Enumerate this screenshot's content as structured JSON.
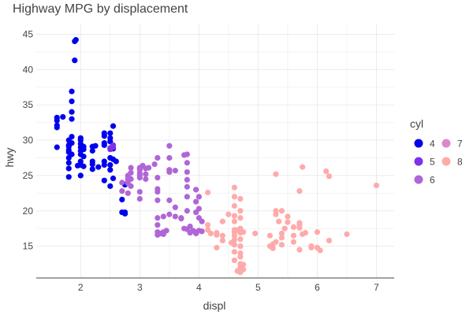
{
  "chart_data": {
    "type": "scatter",
    "title": "Highway MPG by displacement",
    "xlabel": "displ",
    "ylabel": "hwy",
    "xlim": [
      1.25,
      7.3
    ],
    "ylim": [
      10.5,
      46.5
    ],
    "xticks": [
      2,
      3,
      4,
      5,
      6,
      7
    ],
    "yticks": [
      15,
      20,
      25,
      30,
      35,
      40,
      45
    ],
    "grid": true,
    "legend": {
      "title": "cyl",
      "placement": "right",
      "entries": [
        {
          "label": "4",
          "color": "#0000ee"
        },
        {
          "label": "5",
          "color": "#7d32e8"
        },
        {
          "label": "6",
          "color": "#b066d6"
        },
        {
          "label": "7",
          "color": "#dd88cc"
        },
        {
          "label": "8",
          "color": "#ffaaaa"
        }
      ]
    },
    "series": [
      {
        "name": "4",
        "color": "#0000ee",
        "points": [
          [
            1.6,
            33.2
          ],
          [
            1.6,
            32.1
          ],
          [
            1.6,
            31.8
          ],
          [
            1.6,
            29.0
          ],
          [
            1.6,
            32.8
          ],
          [
            1.7,
            33.3
          ],
          [
            1.8,
            29.1
          ],
          [
            1.8,
            28.6
          ],
          [
            1.8,
            26.0
          ],
          [
            1.8,
            24.8
          ],
          [
            1.8,
            26.8
          ],
          [
            1.8,
            28.3
          ],
          [
            1.8,
            30.0
          ],
          [
            1.8,
            29.3
          ],
          [
            1.8,
            27.5
          ],
          [
            1.85,
            30.5
          ],
          [
            1.85,
            34.0
          ],
          [
            1.85,
            33.0
          ],
          [
            1.85,
            35.5
          ],
          [
            1.85,
            36.9
          ],
          [
            1.85,
            28.0
          ],
          [
            1.85,
            29.6
          ],
          [
            1.9,
            44.0
          ],
          [
            1.9,
            41.3
          ],
          [
            1.92,
            44.2
          ],
          [
            1.95,
            26.4
          ],
          [
            2.0,
            29.0
          ],
          [
            2.0,
            30.0
          ],
          [
            2.0,
            28.0
          ],
          [
            2.0,
            26.5
          ],
          [
            2.0,
            25.0
          ],
          [
            2.0,
            29.5
          ],
          [
            2.0,
            28.5
          ],
          [
            2.0,
            27.0
          ],
          [
            2.0,
            30.3
          ],
          [
            2.05,
            28.7
          ],
          [
            2.05,
            29.1
          ],
          [
            2.05,
            27.7
          ],
          [
            2.05,
            26.3
          ],
          [
            2.2,
            27.0
          ],
          [
            2.2,
            25.9
          ],
          [
            2.2,
            26.6
          ],
          [
            2.2,
            28.5
          ],
          [
            2.2,
            29.1
          ],
          [
            2.25,
            29.2
          ],
          [
            2.3,
            26.2
          ],
          [
            2.4,
            30.6
          ],
          [
            2.4,
            31.0
          ],
          [
            2.4,
            29.6
          ],
          [
            2.4,
            27.0
          ],
          [
            2.4,
            26.5
          ],
          [
            2.4,
            24.3
          ],
          [
            2.4,
            29.3
          ],
          [
            2.5,
            30.3
          ],
          [
            2.5,
            29.8
          ],
          [
            2.5,
            31.0
          ],
          [
            2.5,
            27.5
          ],
          [
            2.5,
            26.5
          ],
          [
            2.5,
            25.8
          ],
          [
            2.5,
            23.5
          ],
          [
            2.55,
            32.0
          ],
          [
            2.55,
            28.8
          ],
          [
            2.55,
            27.3
          ],
          [
            2.55,
            24.6
          ],
          [
            2.6,
            27.0
          ],
          [
            2.7,
            21.6
          ],
          [
            2.7,
            19.8
          ],
          [
            2.75,
            19.8
          ],
          [
            2.75,
            19.6
          ],
          [
            2.75,
            23.7
          ]
        ]
      },
      {
        "name": "5",
        "color": "#7d32e8",
        "points": [
          [
            2.5,
            28.9
          ],
          [
            2.55,
            29.3
          ],
          [
            2.5,
            28.7
          ],
          [
            2.55,
            29.0
          ]
        ]
      },
      {
        "name": "6",
        "color": "#b066d6",
        "points": [
          [
            2.7,
            24.0
          ],
          [
            2.7,
            22.8
          ],
          [
            2.8,
            25.0
          ],
          [
            2.8,
            24.6
          ],
          [
            2.8,
            23.9
          ],
          [
            2.8,
            22.5
          ],
          [
            2.8,
            24.2
          ],
          [
            2.8,
            24.9
          ],
          [
            2.85,
            25.4
          ],
          [
            2.85,
            26.1
          ],
          [
            2.85,
            23.5
          ],
          [
            2.85,
            24.5
          ],
          [
            3.0,
            26.0
          ],
          [
            3.0,
            25.0
          ],
          [
            3.0,
            22.7
          ],
          [
            3.0,
            26.1
          ],
          [
            3.0,
            25.3
          ],
          [
            3.0,
            24.7
          ],
          [
            3.0,
            21.7
          ],
          [
            3.0,
            25.8
          ],
          [
            3.05,
            26.4
          ],
          [
            3.1,
            26.0
          ],
          [
            3.1,
            25.2
          ],
          [
            3.1,
            24.5
          ],
          [
            3.15,
            26.1
          ],
          [
            3.25,
            26.6
          ],
          [
            3.3,
            27.5
          ],
          [
            3.3,
            24.7
          ],
          [
            3.3,
            23.1
          ],
          [
            3.3,
            22.7
          ],
          [
            3.3,
            17.0
          ],
          [
            3.3,
            18.0
          ],
          [
            3.3,
            16.6
          ],
          [
            3.3,
            19.0
          ],
          [
            3.3,
            21.5
          ],
          [
            3.35,
            16.8
          ],
          [
            3.4,
            17.0
          ],
          [
            3.4,
            16.7
          ],
          [
            3.4,
            19.2
          ],
          [
            3.45,
            17.2
          ],
          [
            3.5,
            29.2
          ],
          [
            3.5,
            27.5
          ],
          [
            3.5,
            25.5
          ],
          [
            3.5,
            25.8
          ],
          [
            3.6,
            25.7
          ],
          [
            3.5,
            21.5
          ],
          [
            3.5,
            19.5
          ],
          [
            3.6,
            19.2
          ],
          [
            3.6,
            20.5
          ],
          [
            3.75,
            27.9
          ],
          [
            3.7,
            19.0
          ],
          [
            3.7,
            18.9
          ],
          [
            3.75,
            17.5
          ],
          [
            3.8,
            28.0
          ],
          [
            3.8,
            26.8
          ],
          [
            3.8,
            25.5
          ],
          [
            3.8,
            24.4
          ],
          [
            3.8,
            23.4
          ],
          [
            3.8,
            22.0
          ],
          [
            3.8,
            20.0
          ],
          [
            3.8,
            17.4
          ],
          [
            3.85,
            16.9
          ],
          [
            3.85,
            17.8
          ],
          [
            3.9,
            17.2
          ],
          [
            3.95,
            17.0
          ],
          [
            3.95,
            16.8
          ],
          [
            3.95,
            19.8
          ],
          [
            3.95,
            21.3
          ],
          [
            3.95,
            23.0
          ],
          [
            4.0,
            19.0
          ],
          [
            4.0,
            17.2
          ],
          [
            4.0,
            20.3
          ],
          [
            4.0,
            22.0
          ],
          [
            4.05,
            18.5
          ],
          [
            4.05,
            17.1
          ]
        ]
      },
      {
        "name": "8",
        "color": "#ffaaaa",
        "points": [
          [
            4.15,
            22.6
          ],
          [
            4.15,
            18.0
          ],
          [
            4.15,
            17.3
          ],
          [
            4.2,
            16.8
          ],
          [
            4.6,
            23.3
          ],
          [
            4.6,
            22.0
          ],
          [
            4.6,
            20.7
          ],
          [
            4.6,
            19.3
          ],
          [
            4.6,
            18.5
          ],
          [
            4.6,
            17.3
          ],
          [
            4.6,
            17.0
          ],
          [
            4.6,
            16.5
          ],
          [
            4.6,
            15.9
          ],
          [
            4.6,
            15.2
          ],
          [
            4.6,
            14.2
          ],
          [
            4.7,
            21.7
          ],
          [
            4.7,
            20.0
          ],
          [
            4.7,
            19.0
          ],
          [
            4.7,
            17.5
          ],
          [
            4.7,
            16.9
          ],
          [
            4.7,
            17.2
          ],
          [
            4.7,
            16.0
          ],
          [
            4.7,
            15.0
          ],
          [
            4.7,
            14.0
          ],
          [
            4.7,
            12.5
          ],
          [
            4.7,
            12.0
          ],
          [
            4.65,
            11.5
          ],
          [
            4.75,
            12.4
          ],
          [
            4.75,
            11.7
          ],
          [
            4.7,
            11.3
          ],
          [
            4.65,
            17.3
          ],
          [
            4.55,
            15.5
          ],
          [
            4.5,
            19.5
          ],
          [
            4.4,
            15.8
          ],
          [
            4.4,
            18.5
          ],
          [
            4.4,
            16.5
          ],
          [
            4.3,
            16.9
          ],
          [
            4.3,
            16.6
          ],
          [
            4.3,
            14.8
          ],
          [
            4.7,
            13.5
          ],
          [
            4.6,
            13.0
          ],
          [
            4.75,
            17.0
          ],
          [
            4.95,
            16.8
          ],
          [
            5.2,
            15.0
          ],
          [
            5.2,
            16.5
          ],
          [
            5.25,
            15.3
          ],
          [
            5.25,
            14.7
          ],
          [
            5.3,
            25.2
          ],
          [
            5.3,
            20.0
          ],
          [
            5.3,
            19.5
          ],
          [
            5.35,
            18.5
          ],
          [
            5.4,
            20.0
          ],
          [
            5.4,
            16.8
          ],
          [
            5.4,
            16.2
          ],
          [
            5.4,
            15.2
          ],
          [
            5.3,
            15.6
          ],
          [
            5.45,
            17.5
          ],
          [
            5.5,
            19.2
          ],
          [
            5.5,
            18.4
          ],
          [
            5.6,
            17.7
          ],
          [
            5.7,
            18.3
          ],
          [
            5.7,
            17.6
          ],
          [
            5.7,
            22.8
          ],
          [
            5.75,
            26.2
          ],
          [
            5.7,
            18.0
          ],
          [
            5.6,
            15.6
          ],
          [
            5.7,
            14.5
          ],
          [
            5.75,
            16.7
          ],
          [
            5.9,
            15.0
          ],
          [
            5.9,
            14.8
          ],
          [
            6.0,
            17.0
          ],
          [
            6.05,
            14.4
          ],
          [
            6.15,
            25.6
          ],
          [
            6.2,
            24.9
          ],
          [
            6.2,
            15.8
          ],
          [
            6.5,
            16.7
          ],
          [
            7.0,
            23.6
          ],
          [
            5.8,
            16.9
          ],
          [
            5.6,
            16.5
          ],
          [
            6.0,
            14.8
          ]
        ]
      }
    ]
  }
}
